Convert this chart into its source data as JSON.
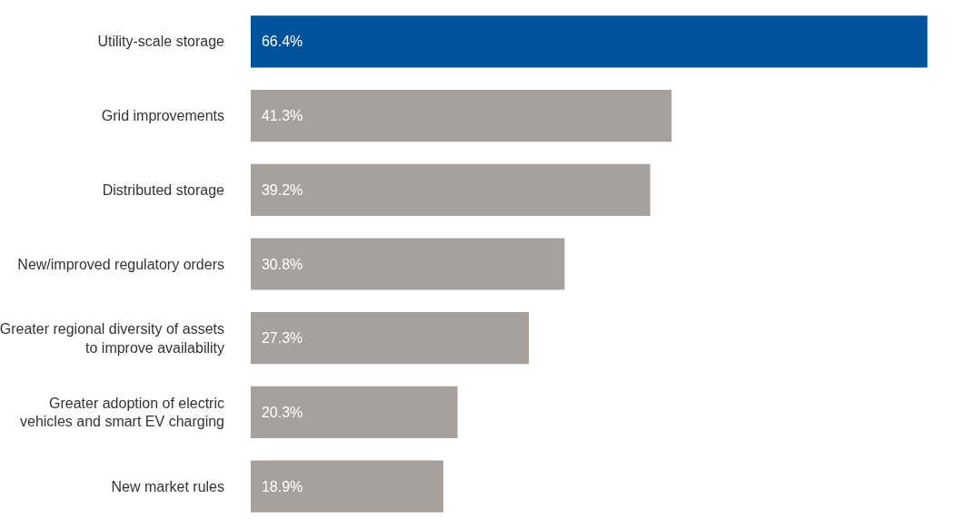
{
  "chart_data": {
    "type": "bar",
    "orientation": "horizontal",
    "categories": [
      "Utility-scale storage",
      "Grid improvements",
      "Distributed storage",
      "New/improved regulatory orders",
      "Greater regional diversity of assets to improve availability",
      "Greater adoption of electric vehicles and smart EV charging",
      "New market rules"
    ],
    "values": [
      66.4,
      41.3,
      39.2,
      30.8,
      27.3,
      20.3,
      18.9
    ],
    "colors": [
      "#00529b",
      "#a7a19e",
      "#a7a19e",
      "#a7a19e",
      "#a7a19e",
      "#a7a19e",
      "#a7a19e"
    ],
    "value_labels": [
      "66.4%",
      "41.3%",
      "39.2%",
      "30.8%",
      "27.3%",
      "20.3%",
      "18.9%"
    ]
  }
}
